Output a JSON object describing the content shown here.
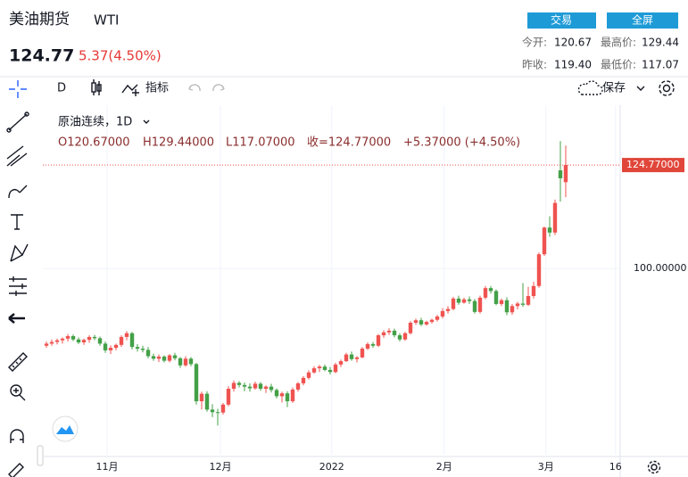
{
  "header": {
    "title": "美油期货",
    "code": "WTI",
    "price": "124.77",
    "change": "5.37(4.50%)",
    "buttons": [
      "交易",
      "全屏"
    ],
    "stats": [
      {
        "label": "今开:",
        "value": "120.67"
      },
      {
        "label": "最高价:",
        "value": "129.44"
      },
      {
        "label": "昨收:",
        "value": "119.40"
      },
      {
        "label": "最低价:",
        "value": "117.07"
      }
    ]
  },
  "toolbar": {
    "interval": "D",
    "indicators": "指标",
    "save": "保存"
  },
  "legend": {
    "symbol": "原油连续，1D",
    "open": "O120.67000",
    "high": "H129.44000",
    "low": "L117.07000",
    "close": "收=124.77000",
    "change": "+5.37000 (+4.50%)"
  },
  "chart": {
    "type": "candlestick",
    "up_color": "#ef5350",
    "down_color": "#43a047",
    "xlim": [
      -0.67,
      107.17
    ],
    "ylim": [
      55.4,
      139.1
    ],
    "xticks": [
      {
        "value": 11.33,
        "label": "11月"
      },
      {
        "value": 32.5,
        "label": "12月"
      },
      {
        "value": 53.3,
        "label": "2022"
      },
      {
        "value": 74.3,
        "label": "2月"
      },
      {
        "value": 93.3,
        "label": "3月"
      },
      {
        "value": 106.3,
        "label": "16"
      }
    ],
    "yticks": [
      {
        "value": 100,
        "label": "100.00000"
      }
    ],
    "last_price": {
      "value": 124.77,
      "label": "124.77000"
    },
    "candles": [
      [
        81.5,
        82.5,
        81,
        82
      ],
      [
        82,
        83,
        81.5,
        82.4
      ],
      [
        82.4,
        83.2,
        81.8,
        82.8
      ],
      [
        82.8,
        83.5,
        82,
        83.2
      ],
      [
        83.2,
        84.3,
        82.5,
        83.8
      ],
      [
        83.8,
        84.2,
        82.6,
        83
      ],
      [
        83,
        83.5,
        81.9,
        82.3
      ],
      [
        82.3,
        83.2,
        81.7,
        82.9
      ],
      [
        82.9,
        84,
        82.2,
        83.6
      ],
      [
        83.6,
        84.1,
        82.8,
        83.3
      ],
      [
        83.3,
        83.7,
        81.5,
        82
      ],
      [
        82,
        82.5,
        79.8,
        80.4
      ],
      [
        80.4,
        81.6,
        79.5,
        81
      ],
      [
        81,
        82,
        80.4,
        81.7
      ],
      [
        81.7,
        84,
        81.2,
        83.6
      ],
      [
        83.6,
        85,
        82.8,
        84.5
      ],
      [
        84.5,
        84.8,
        80.6,
        81.2
      ],
      [
        81.2,
        81.9,
        80.1,
        80.8
      ],
      [
        80.8,
        81.5,
        79.9,
        80.5
      ],
      [
        80.5,
        81.2,
        78.5,
        79
      ],
      [
        79,
        79.6,
        77.9,
        78.4
      ],
      [
        78.4,
        79.4,
        77.6,
        78.9
      ],
      [
        78.9,
        79.2,
        77.5,
        77.9
      ],
      [
        77.9,
        79.5,
        77.5,
        79.2
      ],
      [
        79.2,
        79.8,
        78,
        78.5
      ],
      [
        78.5,
        78.8,
        76.2,
        76.8
      ],
      [
        76.8,
        79,
        76.5,
        78.4
      ],
      [
        78.4,
        78.8,
        76.6,
        77.1
      ],
      [
        77.1,
        77.4,
        67.4,
        68.2
      ],
      [
        68.2,
        70.5,
        66.2,
        70
      ],
      [
        70,
        70.6,
        65.7,
        66.2
      ],
      [
        66.2,
        67.5,
        64.4,
        65.6
      ],
      [
        65.6,
        66.4,
        62.4,
        65.5
      ],
      [
        65.5,
        67.8,
        65,
        67.4
      ],
      [
        67.4,
        71.8,
        67,
        71.2
      ],
      [
        71.2,
        73.2,
        70.5,
        72.6
      ],
      [
        72.6,
        73,
        71.5,
        72.1
      ],
      [
        72.1,
        72.7,
        70.6,
        71.7
      ],
      [
        71.7,
        72.5,
        70.5,
        71.3
      ],
      [
        71.3,
        72.9,
        71,
        72.4
      ],
      [
        72.4,
        72.8,
        70.7,
        71.2
      ],
      [
        71.2,
        72,
        70.2,
        71.7
      ],
      [
        71.7,
        72.4,
        70.3,
        70.9
      ],
      [
        70.9,
        71.3,
        68.9,
        69.4
      ],
      [
        69.4,
        70.5,
        67.9,
        70.1
      ],
      [
        70.1,
        70.6,
        66.8,
        68.2
      ],
      [
        68.2,
        71.5,
        67.8,
        71
      ],
      [
        71,
        72.8,
        70.5,
        72.5
      ],
      [
        72.5,
        74.2,
        72,
        73.8
      ],
      [
        73.8,
        75.6,
        73.4,
        75.1
      ],
      [
        75.1,
        76.6,
        74.8,
        76.1
      ],
      [
        76.1,
        76.9,
        75.2,
        76.5
      ],
      [
        76.5,
        77,
        75.4,
        75.7
      ],
      [
        75.7,
        76.4,
        74.6,
        75.2
      ],
      [
        75.2,
        77.4,
        74.9,
        77
      ],
      [
        77,
        78.2,
        76.4,
        77.8
      ],
      [
        77.8,
        79.8,
        77.6,
        79.4
      ],
      [
        79.4,
        80.1,
        77.9,
        78.3
      ],
      [
        78.3,
        79,
        77.5,
        78.7
      ],
      [
        78.7,
        81.2,
        78.5,
        80.8
      ],
      [
        80.8,
        82.3,
        80.5,
        81.9
      ],
      [
        81.9,
        82.4,
        81,
        81.5
      ],
      [
        81.5,
        84.3,
        81.2,
        84
      ],
      [
        84,
        85.2,
        83.4,
        84.7
      ],
      [
        84.7,
        85.7,
        84.1,
        85.1
      ],
      [
        85.1,
        85.6,
        83.5,
        84
      ],
      [
        84,
        84.5,
        82.5,
        83
      ],
      [
        83,
        84.8,
        82.7,
        84.5
      ],
      [
        84.5,
        87.4,
        84.2,
        87
      ],
      [
        87,
        88,
        86.5,
        87.6
      ],
      [
        87.6,
        88.2,
        86.2,
        86.6
      ],
      [
        86.6,
        87.5,
        86.3,
        87.2
      ],
      [
        87.2,
        88,
        86.8,
        87.7
      ],
      [
        87.7,
        88.9,
        87.3,
        88.5
      ],
      [
        88.5,
        90.5,
        88,
        89.8
      ],
      [
        89.8,
        91,
        89.2,
        90.3
      ],
      [
        90.3,
        93.2,
        90,
        92.8
      ],
      [
        92.8,
        93.5,
        91.3,
        91.8
      ],
      [
        91.8,
        93,
        91.6,
        92.6
      ],
      [
        92.6,
        93.3,
        91.5,
        92.2
      ],
      [
        92.2,
        92.7,
        89.2,
        89.6
      ],
      [
        89.6,
        93.5,
        89.2,
        93
      ],
      [
        93,
        95.8,
        92.6,
        95.3
      ],
      [
        95.3,
        95.8,
        94,
        94.6
      ],
      [
        94.6,
        95,
        91.2,
        91.5
      ],
      [
        91.5,
        92.8,
        91,
        92.4
      ],
      [
        92.4,
        93.1,
        88.8,
        89.5
      ],
      [
        89.5,
        91.5,
        88.9,
        91
      ],
      [
        91,
        92,
        90.2,
        91.6
      ],
      [
        91.6,
        96.5,
        90.8,
        91.3
      ],
      [
        91.3,
        95.6,
        91,
        93.4
      ],
      [
        93.4,
        96.8,
        92.8,
        95.8
      ],
      [
        95.8,
        103.8,
        95.4,
        103.4
      ],
      [
        103.4,
        110,
        103,
        109.8
      ],
      [
        109.8,
        112.5,
        107.6,
        108.6
      ],
      [
        108.6,
        116.5,
        108,
        115.7
      ],
      [
        123.5,
        130.5,
        116,
        121.6
      ],
      [
        120.67,
        129.44,
        117.07,
        124.77
      ]
    ]
  }
}
